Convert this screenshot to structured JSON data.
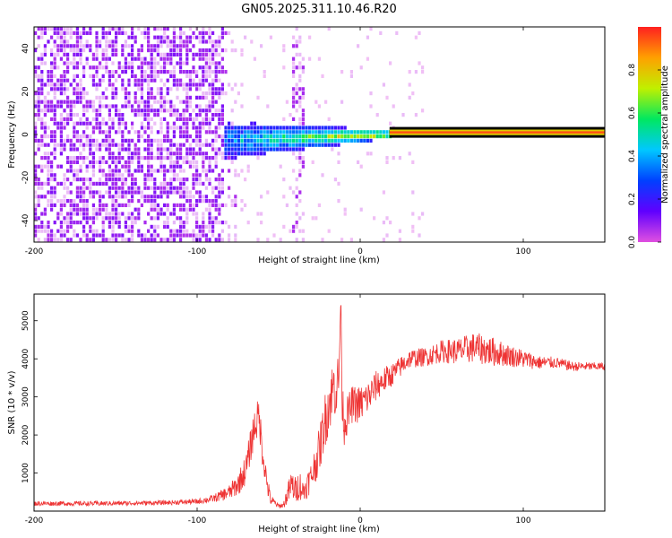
{
  "title": "GN05.2025.311.10.46.R20",
  "colors": {
    "snr_line": "#ee3333",
    "axes": "#000000",
    "background": "#ffffff"
  },
  "chart_data": [
    {
      "type": "heatmap",
      "title": "GN05.2025.311.10.46.R20",
      "xlabel": "Height of straight line (km)",
      "ylabel": "Frequency (Hz)",
      "xlim": [
        -200,
        150
      ],
      "ylim": [
        -50,
        50
      ],
      "x_ticks": [
        -200,
        -100,
        0,
        100
      ],
      "y_ticks": [
        -40,
        -20,
        0,
        20,
        40
      ],
      "colorbar": {
        "label": "Normalized spectral amplitude",
        "range": [
          0,
          1
        ],
        "ticks": [
          "0.0",
          "0.2",
          "0.4",
          "0.6",
          "0.8"
        ],
        "colormap": "rainbow (violet = low, red = high)",
        "stops": [
          "#e050e0",
          "#6000ff",
          "#0040ff",
          "#00c8ff",
          "#00e860",
          "#c0f000",
          "#ffa000",
          "#ff2020"
        ]
      },
      "features": [
        {
          "name": "noise",
          "x_range": [
            -200,
            -84
          ],
          "freq_range": [
            -50,
            50
          ],
          "amplitude": 0.05
        },
        {
          "name": "broadening",
          "x_range": [
            -84,
            20
          ],
          "center_freq": [
            -3,
            0
          ],
          "spread_hz": [
            10,
            2
          ],
          "amplitude": 0.3
        },
        {
          "name": "narrow-line",
          "x_range": [
            18,
            150
          ],
          "center_freq": [
            0.5,
            1.5
          ],
          "spread_hz": 1,
          "amplitude": 0.95
        }
      ],
      "grid": false
    },
    {
      "type": "line",
      "xlabel": "Height of straight line (km)",
      "ylabel": "SNR (10 * v/v)",
      "xlim": [
        -200,
        150
      ],
      "ylim": [
        0,
        5700
      ],
      "x_ticks": [
        -200,
        -100,
        0,
        100
      ],
      "y_ticks": [
        1000,
        2000,
        3000,
        4000,
        5000
      ],
      "series": [
        {
          "x": [
            -200,
            -160,
            -120,
            -100,
            -90,
            -80,
            -75,
            -70,
            -65,
            -62,
            -60,
            -57,
            -55,
            -50,
            -47,
            -45,
            -42,
            -40,
            -37,
            -35,
            -30,
            -25,
            -22,
            -20,
            -18,
            -16,
            -15,
            -13,
            -12,
            -11,
            -10,
            -8,
            -5,
            0,
            5,
            10,
            20,
            30,
            40,
            50,
            60,
            70,
            80,
            90,
            100,
            110,
            120,
            130,
            140,
            150
          ],
          "values": [
            200,
            200,
            220,
            250,
            330,
            500,
            700,
            1100,
            2200,
            2500,
            1600,
            700,
            300,
            130,
            160,
            400,
            700,
            550,
            700,
            500,
            900,
            1600,
            2300,
            2700,
            3000,
            3300,
            3200,
            3500,
            5600,
            3000,
            2300,
            2500,
            2800,
            2800,
            3000,
            3300,
            3600,
            4000,
            4050,
            4200,
            4200,
            4300,
            4200,
            4100,
            4000,
            3900,
            3900,
            3800,
            3800,
            3800
          ],
          "noise_amplitude": [
            60,
            60,
            60,
            70,
            100,
            200,
            300,
            400,
            500,
            500,
            400,
            300,
            150,
            60,
            80,
            250,
            400,
            350,
            400,
            300,
            400,
            600,
            700,
            800,
            800,
            800,
            800,
            700,
            400,
            700,
            600,
            500,
            500,
            500,
            450,
            400,
            300,
            250,
            250,
            300,
            350,
            400,
            400,
            300,
            250,
            180,
            150,
            130,
            110,
            100
          ]
        }
      ],
      "grid": false
    }
  ]
}
